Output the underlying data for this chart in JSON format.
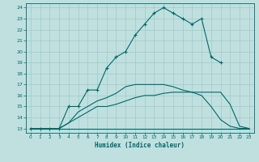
{
  "title": "",
  "xlabel": "Humidex (Indice chaleur)",
  "ylabel": "",
  "bg_color": "#c0e0e0",
  "grid_color": "#a0c8c8",
  "line_color": "#006868",
  "xlim": [
    -0.5,
    23.5
  ],
  "ylim": [
    12.6,
    24.4
  ],
  "xticks": [
    0,
    1,
    2,
    3,
    4,
    5,
    6,
    7,
    8,
    9,
    10,
    11,
    12,
    13,
    14,
    15,
    16,
    17,
    18,
    19,
    20,
    21,
    22,
    23
  ],
  "yticks": [
    13,
    14,
    15,
    16,
    17,
    18,
    19,
    20,
    21,
    22,
    23,
    24
  ],
  "lines": [
    {
      "x": [
        0,
        1,
        2,
        3,
        4,
        5,
        6,
        7,
        8,
        9,
        10,
        11,
        12,
        13,
        14,
        15,
        16,
        17,
        18,
        19,
        20
      ],
      "y": [
        13,
        13,
        13,
        13,
        15,
        15,
        16.5,
        16.5,
        18.5,
        19.5,
        20,
        21.5,
        22.5,
        23.5,
        24,
        23.5,
        23,
        22.5,
        23,
        19.5,
        19
      ],
      "marker": "+"
    },
    {
      "x": [
        0,
        1,
        2,
        3,
        4,
        5,
        6,
        7,
        8,
        9,
        10,
        11,
        12,
        13,
        14,
        15,
        16,
        17,
        18,
        19,
        20,
        21,
        22,
        23
      ],
      "y": [
        13,
        13,
        13,
        13,
        13,
        13,
        13,
        13,
        13,
        13,
        13,
        13,
        13,
        13,
        13,
        13,
        13,
        13,
        13,
        13,
        13,
        13,
        13,
        13
      ],
      "marker": null
    },
    {
      "x": [
        0,
        1,
        2,
        3,
        4,
        5,
        6,
        7,
        8,
        9,
        10,
        11,
        12,
        13,
        14,
        15,
        16,
        17,
        18,
        19,
        20,
        21,
        22,
        23
      ],
      "y": [
        13,
        13,
        13,
        13,
        13.5,
        14.0,
        14.5,
        15.0,
        15.0,
        15.2,
        15.5,
        15.8,
        16.0,
        16.0,
        16.2,
        16.3,
        16.3,
        16.3,
        16.3,
        16.3,
        16.3,
        15.2,
        13.2,
        13
      ],
      "marker": null
    },
    {
      "x": [
        0,
        1,
        2,
        3,
        4,
        5,
        6,
        7,
        8,
        9,
        10,
        11,
        12,
        13,
        14,
        15,
        16,
        17,
        18,
        19,
        20,
        21,
        22,
        23
      ],
      "y": [
        13,
        13,
        13,
        13,
        13.5,
        14.5,
        15.0,
        15.5,
        15.8,
        16.2,
        16.8,
        17.0,
        17.0,
        17.0,
        17.0,
        16.8,
        16.5,
        16.3,
        16.0,
        15.0,
        13.8,
        13.2,
        13,
        13
      ],
      "marker": null
    }
  ]
}
